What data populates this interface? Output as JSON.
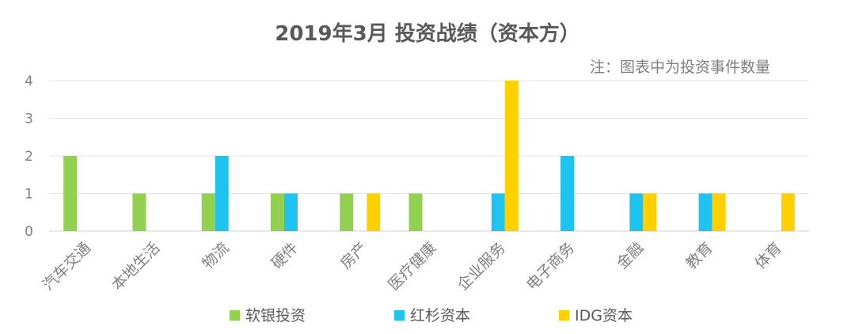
{
  "chart_data": {
    "type": "bar",
    "title": "2019年3月 投资战绩（资本方）",
    "note": "注：图表中为投资事件数量",
    "categories": [
      "汽车交通",
      "本地生活",
      "物流",
      "硬件",
      "房产",
      "医疗健康",
      "企业服务",
      "电子商务",
      "金融",
      "教育",
      "体育"
    ],
    "series": [
      {
        "name": "软银投资",
        "color": "#92d050",
        "values": [
          2,
          1,
          1,
          1,
          1,
          1,
          0,
          0,
          0,
          0,
          0
        ]
      },
      {
        "name": "红杉资本",
        "color": "#1fc3f0",
        "values": [
          0,
          0,
          2,
          1,
          0,
          0,
          1,
          2,
          1,
          1,
          0
        ]
      },
      {
        "name": "IDG资本",
        "color": "#ffd000",
        "values": [
          0,
          0,
          0,
          0,
          1,
          0,
          4,
          0,
          1,
          1,
          1
        ]
      }
    ],
    "ylim": [
      0,
      4
    ],
    "yticks": [
      0,
      1,
      2,
      3,
      4
    ],
    "grid": true,
    "legend_position": "bottom"
  }
}
